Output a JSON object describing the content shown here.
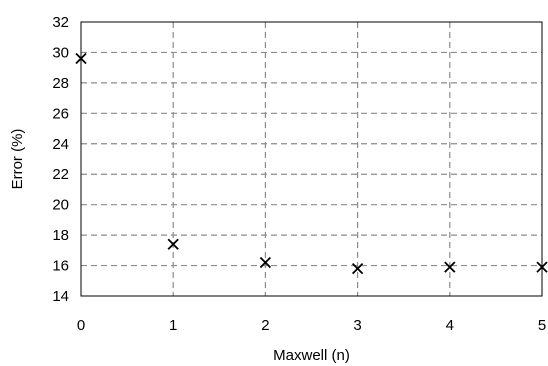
{
  "chart_data": {
    "type": "scatter",
    "title": "",
    "xlabel": "Maxwell (n)",
    "ylabel": "Error (%)",
    "xlim": [
      0,
      5
    ],
    "ylim": [
      14,
      32
    ],
    "x_ticks": [
      0,
      1,
      2,
      3,
      4,
      5
    ],
    "y_ticks": [
      14,
      16,
      18,
      20,
      22,
      24,
      26,
      28,
      30,
      32
    ],
    "grid": true,
    "legend": "none",
    "marker": "x",
    "marker_color": "#000000",
    "series": [
      {
        "x": [
          0,
          1,
          2,
          3,
          4,
          5
        ],
        "y": [
          29.6,
          17.4,
          16.2,
          15.8,
          15.9,
          15.9
        ]
      }
    ]
  }
}
